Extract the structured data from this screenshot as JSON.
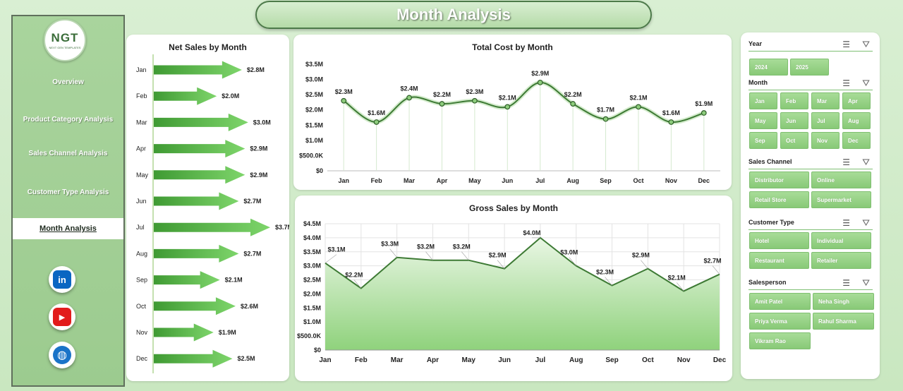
{
  "title": "Month Analysis",
  "logo": {
    "text": "NGT",
    "subtext": "NEXT GEN TEMPLATES"
  },
  "nav": [
    {
      "label": "Overview",
      "active": false
    },
    {
      "label": "Product Category Analysis",
      "active": false
    },
    {
      "label": "Sales Channel Analysis",
      "active": false
    },
    {
      "label": "Customer Type Analysis",
      "active": false
    },
    {
      "label": "Month Analysis",
      "active": true
    }
  ],
  "social": [
    {
      "icon": "linkedin-icon",
      "glyph": "in",
      "color": "#0a66c2"
    },
    {
      "icon": "youtube-icon",
      "glyph": "▶",
      "color": "#e21b1b"
    },
    {
      "icon": "globe-icon",
      "glyph": "◍",
      "color": "#1a73c8"
    }
  ],
  "colors": {
    "accent": "#4a8c3f",
    "arrow_light": "#7ed56b",
    "arrow_dark": "#3f9a33"
  },
  "slicers": [
    {
      "label": "Year",
      "items": [
        "2024",
        "2025"
      ]
    },
    {
      "label": "Month",
      "items": [
        "Jan",
        "Feb",
        "Mar",
        "Apr",
        "May",
        "Jun",
        "Jul",
        "Aug",
        "Sep",
        "Oct",
        "Nov",
        "Dec"
      ]
    },
    {
      "label": "Sales Channel",
      "items": [
        "Distributor",
        "Online",
        "Retail Store",
        "Supermarket"
      ]
    },
    {
      "label": "Customer Type",
      "items": [
        "Hotel",
        "Individual",
        "Restaurant",
        "Retailer"
      ]
    },
    {
      "label": "Salesperson",
      "items": [
        "Amit Patel",
        "Neha Singh",
        "Priya Verma",
        "Rahul Sharma",
        "Vikram Rao"
      ]
    }
  ],
  "chart_data": [
    {
      "type": "bar",
      "title": "Net Sales by Month",
      "orientation": "horizontal",
      "categories": [
        "Jan",
        "Feb",
        "Mar",
        "Apr",
        "May",
        "Jun",
        "Jul",
        "Aug",
        "Sep",
        "Oct",
        "Nov",
        "Dec"
      ],
      "values": [
        2.8,
        2.0,
        3.0,
        2.9,
        2.9,
        2.7,
        3.7,
        2.7,
        2.1,
        2.6,
        1.9,
        2.5
      ],
      "labels": [
        "$2.8M",
        "$2.0M",
        "$3.0M",
        "$2.9M",
        "$2.9M",
        "$2.7M",
        "$3.7M",
        "$2.7M",
        "$2.1M",
        "$2.6M",
        "$1.9M",
        "$2.5M"
      ],
      "unit": "$M"
    },
    {
      "type": "line",
      "title": "Total Cost by Month",
      "categories": [
        "Jan",
        "Feb",
        "Mar",
        "Apr",
        "May",
        "Jun",
        "Jul",
        "Aug",
        "Sep",
        "Oct",
        "Nov",
        "Dec"
      ],
      "values": [
        2.3,
        1.6,
        2.4,
        2.2,
        2.3,
        2.1,
        2.9,
        2.2,
        1.7,
        2.1,
        1.6,
        1.9
      ],
      "labels": [
        "$2.3M",
        "$1.6M",
        "$2.4M",
        "$2.2M",
        "$2.3M",
        "$2.1M",
        "$2.9M",
        "$2.2M",
        "$1.7M",
        "$2.1M",
        "$1.6M",
        "$1.9M"
      ],
      "ylim": [
        0,
        3.5
      ],
      "yticks": [
        "$0",
        "$500.0K",
        "$1.0M",
        "$1.5M",
        "$2.0M",
        "$2.5M",
        "$3.0M",
        "$3.5M"
      ],
      "smooth": true,
      "markers": true,
      "grid": "vertical"
    },
    {
      "type": "area",
      "title": "Gross Sales by Month",
      "categories": [
        "Jan",
        "Feb",
        "Mar",
        "Apr",
        "May",
        "Jun",
        "Jul",
        "Aug",
        "Sep",
        "Oct",
        "Nov",
        "Dec"
      ],
      "values": [
        3.1,
        2.2,
        3.3,
        3.2,
        3.2,
        2.9,
        4.0,
        3.0,
        2.3,
        2.9,
        2.1,
        2.7
      ],
      "labels": [
        "$3.1M",
        "$2.2M",
        "$3.3M",
        "$3.2M",
        "$3.2M",
        "$2.9M",
        "$4.0M",
        "$3.0M",
        "$2.3M",
        "$2.9M",
        "$2.1M",
        "$2.7M"
      ],
      "ylim": [
        0,
        4.5
      ],
      "yticks": [
        "$0",
        "$500.0K",
        "$1.0M",
        "$1.5M",
        "$2.0M",
        "$2.5M",
        "$3.0M",
        "$3.5M",
        "$4.0M",
        "$4.5M"
      ],
      "grid": "both"
    }
  ]
}
